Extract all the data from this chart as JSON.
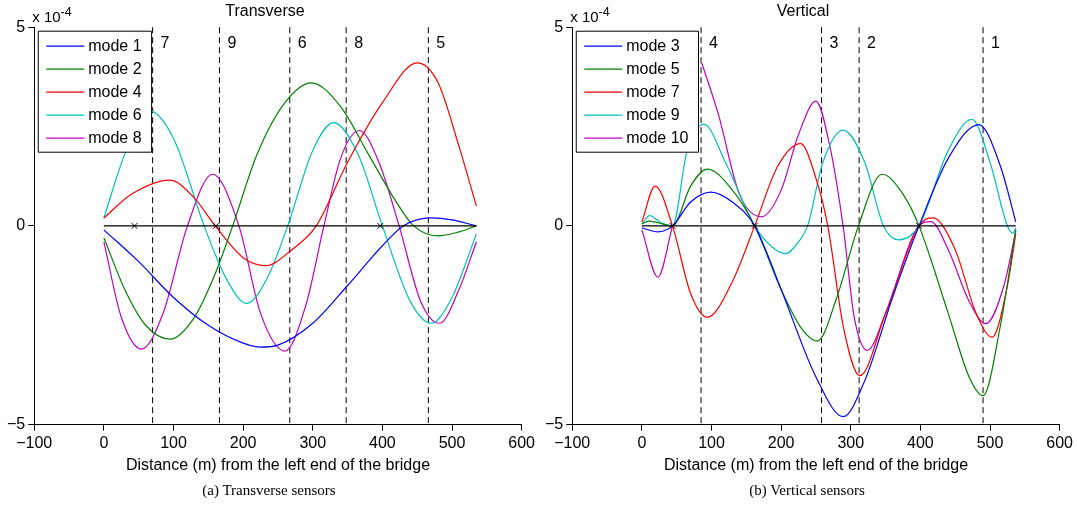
{
  "chart_data": [
    {
      "type": "line",
      "title": "Transverse",
      "xlabel": "Distance (m) from the left end of the bridge",
      "annotations": [
        "x 10$^{-4}$",
        "(a)  Transverse sensors",
        {
          "text": "7",
          "x": 70,
          "y": 4.6
        },
        {
          "text": "9",
          "x": 166,
          "y": 4.6
        },
        {
          "text": "6",
          "x": 267,
          "y": 4.6
        },
        {
          "text": "8",
          "x": 348,
          "y": 4.6
        },
        {
          "text": "5",
          "x": 466,
          "y": 4.6
        }
      ],
      "xlim": [
        -100,
        600
      ],
      "xticks": [
        -100,
        0,
        100,
        200,
        300,
        400,
        500,
        600
      ],
      "ylim": [
        -5,
        5
      ],
      "yticks": [
        -5,
        0,
        5
      ],
      "grid": false,
      "legend": "top left",
      "marker": "none",
      "line_style": "solid",
      "ref_lines": [
        {
          "axis": "x",
          "value": 70,
          "color": "#000000",
          "line_style": "dashed"
        },
        {
          "axis": "x",
          "value": 166,
          "color": "#000000",
          "line_style": "dashed"
        },
        {
          "axis": "x",
          "value": 267,
          "color": "#000000",
          "line_style": "dashed"
        },
        {
          "axis": "x",
          "value": 348,
          "color": "#000000",
          "line_style": "dashed"
        },
        {
          "axis": "x",
          "value": 466,
          "color": "#000000",
          "line_style": "dashed"
        }
      ],
      "series": [
        {
          "color": "#000000",
          "x": [
            0,
            535
          ],
          "values": [
            0,
            0
          ]
        },
        {
          "type": "scatter",
          "marker": "cross",
          "color": "#000000",
          "x": [
            44,
            161,
            397
          ],
          "values": [
            0,
            0,
            0
          ]
        },
        {
          "name": "mode 1",
          "color": "#0000ff",
          "x": [
            0,
            50,
            100,
            150,
            200,
            225,
            250,
            300,
            350,
            400,
            430,
            470,
            500,
            535
          ],
          "values": [
            -0.1,
            -0.9,
            -1.8,
            -2.5,
            -2.95,
            -3.05,
            -3.0,
            -2.45,
            -1.5,
            -0.5,
            0,
            0.2,
            0.15,
            0
          ]
        },
        {
          "name": "mode 2",
          "color": "#008000",
          "x": [
            0,
            30,
            60,
            95,
            130,
            160,
            185,
            220,
            260,
            298,
            340,
            380,
            420,
            445,
            480,
            510,
            535
          ],
          "values": [
            -0.3,
            -1.6,
            -2.5,
            -2.85,
            -2.3,
            -1.2,
            0,
            1.8,
            3.1,
            3.6,
            3.0,
            1.8,
            0.6,
            0,
            -0.25,
            -0.15,
            0
          ]
        },
        {
          "name": "mode 4",
          "color": "#ff0000",
          "x": [
            0,
            40,
            95,
            130,
            160,
            200,
            232,
            270,
            305,
            350,
            400,
            450,
            480,
            510,
            535
          ],
          "values": [
            0.2,
            0.8,
            1.15,
            0.7,
            0,
            -0.8,
            -1.0,
            -0.6,
            0,
            1.6,
            3.1,
            4.1,
            3.6,
            2.0,
            0.5
          ]
        },
        {
          "name": "mode 6",
          "color": "#00bfbf",
          "x": [
            0,
            30,
            65,
            100,
            144,
            175,
            205,
            235,
            264,
            300,
            330,
            365,
            400,
            440,
            470,
            500,
            535
          ],
          "values": [
            0.2,
            1.8,
            2.9,
            2.2,
            0,
            -1.3,
            -1.95,
            -1.3,
            0,
            1.9,
            2.6,
            1.8,
            0,
            -1.9,
            -2.45,
            -1.8,
            -0.2
          ]
        },
        {
          "name": "mode 8",
          "color": "#bf00bf",
          "x": [
            0,
            25,
            54,
            85,
            120,
            156,
            194,
            225,
            260,
            290,
            316,
            340,
            367,
            395,
            424,
            455,
            482,
            510,
            535
          ],
          "values": [
            -0.4,
            -2.3,
            -3.1,
            -2.2,
            0,
            1.3,
            0,
            -2.2,
            -3.15,
            -2.0,
            0,
            1.7,
            2.4,
            1.6,
            0,
            -1.9,
            -2.45,
            -1.6,
            -0.4
          ]
        }
      ]
    },
    {
      "type": "line",
      "title": "Vertical",
      "xlabel": "Distance (m) from the left end of the bridge",
      "annotations": [
        "x 10$^{-4}$",
        "(b)  Vertical sensors",
        {
          "text": "4",
          "x": 85,
          "y": 4.6
        },
        {
          "text": "3",
          "x": 258,
          "y": 4.6
        },
        {
          "text": "2",
          "x": 312,
          "y": 4.6
        },
        {
          "text": "1",
          "x": 490,
          "y": 4.6
        }
      ],
      "xlim": [
        -100,
        600
      ],
      "xticks": [
        -100,
        0,
        100,
        200,
        300,
        400,
        500,
        600
      ],
      "ylim": [
        -5,
        5
      ],
      "yticks": [
        -5,
        0,
        5
      ],
      "grid": false,
      "legend": "top left",
      "marker": "none",
      "line_style": "solid",
      "ref_lines": [
        {
          "axis": "x",
          "value": 85,
          "color": "#000000",
          "line_style": "dashed"
        },
        {
          "axis": "x",
          "value": 258,
          "color": "#000000",
          "line_style": "dashed"
        },
        {
          "axis": "x",
          "value": 312,
          "color": "#000000",
          "line_style": "dashed"
        },
        {
          "axis": "x",
          "value": 490,
          "color": "#000000",
          "line_style": "dashed"
        }
      ],
      "series": [
        {
          "color": "#000000",
          "x": [
            0,
            537
          ],
          "values": [
            0,
            0
          ]
        },
        {
          "type": "scatter",
          "marker": "cross",
          "color": "#000000",
          "x": [
            44,
            162,
            398
          ],
          "values": [
            0,
            0,
            0
          ]
        },
        {
          "name": "mode 3",
          "color": "#0000ff",
          "x": [
            0,
            23,
            44,
            70,
            99,
            130,
            162,
            200,
            250,
            289,
            320,
            360,
            398,
            440,
            484,
            515,
            537
          ],
          "values": [
            -0.05,
            -0.15,
            0,
            0.6,
            0.85,
            0.6,
            0,
            -1.6,
            -3.8,
            -4.8,
            -3.9,
            -1.8,
            0,
            1.7,
            2.55,
            1.5,
            0.1
          ]
        },
        {
          "name": "mode 5",
          "color": "#008000",
          "x": [
            0,
            10,
            30,
            44,
            70,
            94,
            130,
            162,
            200,
            230,
            252,
            280,
            311,
            345,
            375,
            398,
            440,
            470,
            490,
            515,
            537
          ],
          "values": [
            0.05,
            0.12,
            0.05,
            0,
            1.0,
            1.43,
            0.9,
            0,
            -1.6,
            -2.6,
            -2.9,
            -1.8,
            0,
            1.3,
            0.8,
            0,
            -2.2,
            -3.8,
            -4.27,
            -2.5,
            -0.1
          ]
        },
        {
          "name": "mode 7",
          "color": "#ff0000",
          "x": [
            0,
            19,
            44,
            70,
            94,
            130,
            162,
            195,
            228,
            250,
            267,
            290,
            313,
            350,
            398,
            418,
            450,
            480,
            503,
            525,
            537
          ],
          "values": [
            0.1,
            1.0,
            0,
            -1.7,
            -2.3,
            -1.4,
            0,
            1.5,
            2.07,
            1.2,
            0,
            -2.6,
            -3.77,
            -2.2,
            0,
            0.2,
            -0.6,
            -2.2,
            -2.8,
            -1.5,
            -0.2
          ]
        },
        {
          "name": "mode 9",
          "color": "#00bfbf",
          "x": [
            0,
            11,
            30,
            44,
            65,
            89,
            120,
            162,
            185,
            206,
            225,
            238,
            260,
            289,
            320,
            347,
            369,
            398,
            440,
            474,
            500,
            525,
            533,
            537
          ],
          "values": [
            0.05,
            0.26,
            0.05,
            0,
            1.9,
            2.56,
            1.6,
            0,
            -0.5,
            -0.7,
            -0.4,
            0,
            1.6,
            2.41,
            1.6,
            0,
            -0.35,
            0,
            1.9,
            2.68,
            1.6,
            0,
            -0.18,
            -0.05
          ]
        },
        {
          "name": "mode 10",
          "color": "#bf00bf",
          "x": [
            0,
            23,
            44,
            60,
            86,
            110,
            140,
            172,
            200,
            225,
            250,
            270,
            289,
            305,
            324,
            350,
            398,
            415,
            440,
            470,
            494,
            520,
            537
          ],
          "values": [
            -0.1,
            -1.29,
            0,
            null,
            4.1,
            2.8,
            0.8,
            0.23,
            0.9,
            2.3,
            3.14,
            2.0,
            0,
            -2.3,
            -3.13,
            -2.2,
            0,
            0.11,
            -0.6,
            -1.9,
            -2.46,
            -1.5,
            -0.13
          ]
        }
      ]
    }
  ]
}
